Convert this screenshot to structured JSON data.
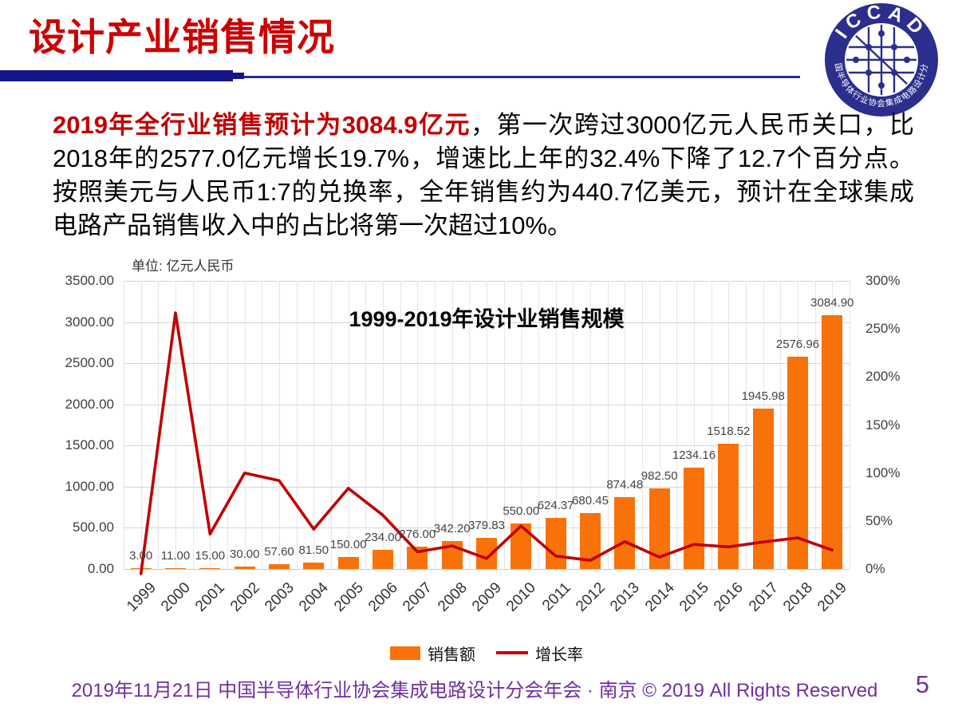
{
  "header": {
    "title": "设计产业销售情况"
  },
  "logo": {
    "arc_text": "ICCAD",
    "bottom_arc_text": "中国半导体行业协会集成电路设计分会",
    "color": "#2B2E8C"
  },
  "body": {
    "highlight": "2019年全行业销售预计为3084.9亿元",
    "rest": "，第一次跨过3000亿元人民币关口，比2018年的2577.0亿元增长19.7%，增速比上年的32.4%下降了12.7个百分点。按照美元与人民币1:7的兑换率，全年销售约为440.7亿美元，预计在全球集成电路产品销售收入中的占比将第一次超过10%。"
  },
  "chart_data": {
    "type": "bar",
    "subtype": "combo-bar-line",
    "title": "1999-2019年设计业销售规模",
    "unit_label": "单位: 亿元人民币",
    "categories": [
      "1999",
      "2000",
      "2001",
      "2002",
      "2003",
      "2004",
      "2005",
      "2006",
      "2007",
      "2008",
      "2009",
      "2010",
      "2011",
      "2012",
      "2013",
      "2014",
      "2015",
      "2016",
      "2017",
      "2018",
      "2019"
    ],
    "series": [
      {
        "name": "销售额",
        "kind": "bar",
        "axis": "left",
        "color": "#F87209",
        "values": [
          3.0,
          11.0,
          15.0,
          30.0,
          57.6,
          81.5,
          150.0,
          234.0,
          276.0,
          342.2,
          379.83,
          550.0,
          624.37,
          680.45,
          874.48,
          982.5,
          1234.16,
          1518.52,
          1945.98,
          2576.96,
          3084.9
        ],
        "data_labels": [
          "3.00",
          "11.00",
          "15.00",
          "30.00",
          "57.60",
          "81.50",
          "150.00",
          "234.00",
          "276.00",
          "342.20",
          "379.83",
          "550.00",
          "624.37",
          "680.45",
          "874.48",
          "982.50",
          "1234.16",
          "1518.52",
          "1945.98",
          "2576.96",
          "3084.90"
        ]
      },
      {
        "name": "增长率",
        "kind": "line",
        "axis": "right",
        "color": "#C00000",
        "values_pct": [
          -5,
          266.7,
          36.4,
          100.0,
          92.0,
          41.5,
          84.0,
          56.0,
          17.9,
          24.0,
          11.0,
          44.8,
          13.5,
          9.0,
          28.5,
          12.4,
          25.6,
          23.0,
          28.1,
          32.4,
          19.7
        ]
      }
    ],
    "left_axis": {
      "min": 0,
      "max": 3500,
      "step": 500,
      "ticks": [
        "0.00",
        "500.00",
        "1000.00",
        "1500.00",
        "2000.00",
        "2500.00",
        "3000.00",
        "3500.00"
      ]
    },
    "right_axis": {
      "min": 0,
      "max": 300,
      "step": 50,
      "ticks": [
        "0%",
        "50%",
        "100%",
        "150%",
        "200%",
        "250%",
        "300%"
      ]
    },
    "grid": {
      "horizontal": true,
      "vertical": true
    },
    "legend_position": "bottom"
  },
  "footer": {
    "text": "2019年11月21日 中国半导体行业协会集成电路设计分会年会 · 南京 © 2019 All Rights Reserved",
    "page_number": "5"
  },
  "colors": {
    "title_red": "#CC0000",
    "divider_navy": "#15158A",
    "bar_orange": "#F87209",
    "line_dark_red": "#C00000",
    "footer_purple": "#7030A0"
  }
}
